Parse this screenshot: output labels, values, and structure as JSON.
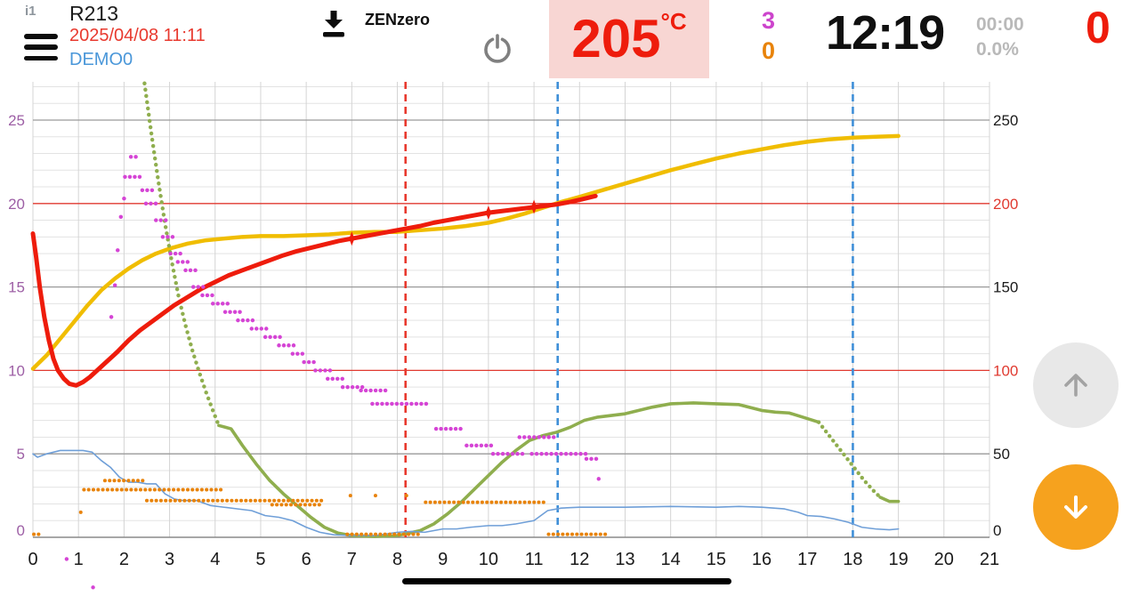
{
  "header": {
    "device_id": "i1",
    "title": "R213",
    "datetime": "2025/04/08 11:11",
    "profile": "DEMO0",
    "brand": "ZENzero",
    "temp_value": "205",
    "temp_unit": "°C",
    "counter_magenta": "3",
    "counter_orange": "0",
    "clock": "12:19",
    "timer_small": "00:00",
    "percent_small": "0.0%",
    "counter_red": "0"
  },
  "colors": {
    "accent_red": "#ee1c0c",
    "accent_blue": "#4a97d9",
    "accent_magenta": "#cc44cc",
    "accent_orange": "#e8830a",
    "temp_bg": "#f8d6d3",
    "fab_orange": "#f6a21e"
  },
  "chart_data": {
    "type": "line",
    "x_axis": {
      "min": 0,
      "max": 21,
      "ticks": [
        0,
        1,
        2,
        3,
        4,
        5,
        6,
        7,
        8,
        9,
        10,
        11,
        12,
        13,
        14,
        15,
        16,
        17,
        18,
        19,
        20,
        21
      ]
    },
    "y_left": {
      "min": 0,
      "max": 25,
      "ticks": [
        0,
        5,
        10,
        15,
        20,
        25
      ],
      "color": "#9d5fa5"
    },
    "y_right": {
      "min": 0,
      "max": 250,
      "ticks": [
        0,
        50,
        100,
        150,
        200,
        250
      ],
      "highlight": [
        100,
        200
      ],
      "highlight_color": "#e03a30"
    },
    "red_line_color": "#e03a30",
    "red_hlines": [
      10,
      20
    ],
    "v_dashed": [
      {
        "x": 8.18,
        "color": "#e8392e"
      },
      {
        "x": 11.52,
        "color": "#3f8fd8"
      },
      {
        "x": 18.0,
        "color": "#3f8fd8"
      }
    ],
    "series": [
      {
        "name": "env-temp",
        "color": "#f0bd00",
        "width": 4.5,
        "style": "solid",
        "points": [
          [
            0,
            10.1
          ],
          [
            0.3,
            10.9
          ],
          [
            0.6,
            11.9
          ],
          [
            0.9,
            12.9
          ],
          [
            1.2,
            13.9
          ],
          [
            1.5,
            14.8
          ],
          [
            1.8,
            15.5
          ],
          [
            2.1,
            16.1
          ],
          [
            2.4,
            16.6
          ],
          [
            2.7,
            17.0
          ],
          [
            3.0,
            17.3
          ],
          [
            3.4,
            17.6
          ],
          [
            3.8,
            17.8
          ],
          [
            4.2,
            17.9
          ],
          [
            4.6,
            18.0
          ],
          [
            5.0,
            18.05
          ],
          [
            5.5,
            18.05
          ],
          [
            6.0,
            18.1
          ],
          [
            6.5,
            18.15
          ],
          [
            7.0,
            18.25
          ],
          [
            7.5,
            18.3
          ],
          [
            8.0,
            18.3
          ],
          [
            8.5,
            18.4
          ],
          [
            9.0,
            18.5
          ],
          [
            9.5,
            18.65
          ],
          [
            10.0,
            18.85
          ],
          [
            10.4,
            19.1
          ],
          [
            10.8,
            19.4
          ],
          [
            11.2,
            19.75
          ],
          [
            11.6,
            20.1
          ],
          [
            12.0,
            20.4
          ],
          [
            12.5,
            20.8
          ],
          [
            13.0,
            21.2
          ],
          [
            13.5,
            21.6
          ],
          [
            14.0,
            22.0
          ],
          [
            14.5,
            22.35
          ],
          [
            15.0,
            22.7
          ],
          [
            15.5,
            23.0
          ],
          [
            16.0,
            23.25
          ],
          [
            16.5,
            23.5
          ],
          [
            17.0,
            23.7
          ],
          [
            17.5,
            23.85
          ],
          [
            18.0,
            23.95
          ],
          [
            18.5,
            24.0
          ],
          [
            19.0,
            24.05
          ]
        ]
      },
      {
        "name": "ror-drop-dotted",
        "color": "#8fae4e",
        "width": 4.4,
        "style": "dotted",
        "gap": 7,
        "points": [
          [
            2.45,
            27.2
          ],
          [
            2.6,
            24.2
          ],
          [
            2.75,
            21.4
          ],
          [
            2.9,
            18.8
          ],
          [
            3.05,
            16.5
          ],
          [
            3.2,
            14.4
          ],
          [
            3.35,
            12.7
          ],
          [
            3.5,
            11.2
          ],
          [
            3.65,
            9.9
          ],
          [
            3.8,
            8.7
          ],
          [
            3.95,
            7.6
          ],
          [
            4.08,
            6.7
          ]
        ]
      },
      {
        "name": "gas-power",
        "color": "#8fae4e",
        "width": 3.6,
        "style": "solid",
        "points": [
          [
            4.08,
            6.7
          ],
          [
            4.35,
            6.5
          ],
          [
            4.6,
            5.5
          ],
          [
            4.9,
            4.4
          ],
          [
            5.2,
            3.4
          ],
          [
            5.5,
            2.6
          ],
          [
            5.8,
            1.9
          ],
          [
            6.1,
            1.2
          ],
          [
            6.4,
            0.6
          ],
          [
            6.7,
            0.25
          ],
          [
            7.0,
            0.1
          ],
          [
            7.5,
            0.05
          ],
          [
            8.0,
            0.1
          ],
          [
            8.5,
            0.4
          ],
          [
            8.8,
            0.8
          ],
          [
            9.1,
            1.4
          ],
          [
            9.4,
            2.1
          ],
          [
            9.7,
            2.9
          ],
          [
            10.0,
            3.7
          ],
          [
            10.3,
            4.5
          ],
          [
            10.6,
            5.2
          ],
          [
            10.9,
            5.8
          ],
          [
            11.2,
            6.1
          ],
          [
            11.5,
            6.3
          ],
          [
            11.8,
            6.6
          ],
          [
            12.1,
            7.0
          ],
          [
            12.4,
            7.2
          ],
          [
            12.7,
            7.3
          ],
          [
            13.0,
            7.4
          ],
          [
            13.3,
            7.6
          ],
          [
            13.6,
            7.8
          ],
          [
            14.0,
            8.0
          ],
          [
            14.5,
            8.05
          ],
          [
            15.0,
            8.0
          ],
          [
            15.5,
            7.95
          ],
          [
            16.0,
            7.6
          ],
          [
            16.3,
            7.5
          ],
          [
            16.6,
            7.45
          ],
          [
            16.9,
            7.2
          ],
          [
            17.25,
            6.9
          ]
        ]
      },
      {
        "name": "gas-tail-dotted",
        "color": "#8fae4e",
        "width": 4.4,
        "style": "dotted",
        "gap": 6.5,
        "points": [
          [
            17.25,
            6.9
          ],
          [
            17.45,
            6.2
          ],
          [
            17.65,
            5.5
          ],
          [
            17.85,
            4.8
          ],
          [
            18.05,
            4.1
          ],
          [
            18.25,
            3.4
          ],
          [
            18.45,
            2.8
          ],
          [
            18.6,
            2.4
          ]
        ]
      },
      {
        "name": "gas-tail",
        "color": "#8fae4e",
        "width": 3.6,
        "style": "solid",
        "points": [
          [
            18.6,
            2.4
          ],
          [
            18.8,
            2.15
          ],
          [
            19.0,
            2.15
          ]
        ]
      },
      {
        "name": "damper",
        "color": "#6f9fd8",
        "width": 1.6,
        "style": "solid",
        "points": [
          [
            0,
            5.0
          ],
          [
            0.1,
            4.8
          ],
          [
            0.3,
            5.0
          ],
          [
            0.6,
            5.2
          ],
          [
            0.9,
            5.2
          ],
          [
            1.1,
            5.2
          ],
          [
            1.3,
            5.1
          ],
          [
            1.5,
            4.6
          ],
          [
            1.7,
            4.2
          ],
          [
            1.9,
            3.6
          ],
          [
            2.1,
            3.3
          ],
          [
            2.3,
            3.3
          ],
          [
            2.5,
            3.2
          ],
          [
            2.7,
            3.2
          ],
          [
            2.9,
            2.6
          ],
          [
            3.1,
            2.3
          ],
          [
            3.3,
            2.2
          ],
          [
            3.6,
            2.2
          ],
          [
            3.9,
            1.9
          ],
          [
            4.2,
            1.8
          ],
          [
            4.5,
            1.7
          ],
          [
            4.8,
            1.6
          ],
          [
            5.1,
            1.3
          ],
          [
            5.4,
            1.2
          ],
          [
            5.7,
            1.0
          ],
          [
            6.0,
            0.6
          ],
          [
            6.3,
            0.3
          ],
          [
            6.6,
            0.15
          ],
          [
            7.0,
            0.1
          ],
          [
            7.5,
            0.1
          ],
          [
            8.0,
            0.3
          ],
          [
            8.3,
            0.35
          ],
          [
            8.6,
            0.3
          ],
          [
            9.0,
            0.5
          ],
          [
            9.3,
            0.5
          ],
          [
            9.6,
            0.6
          ],
          [
            10.0,
            0.7
          ],
          [
            10.3,
            0.7
          ],
          [
            10.6,
            0.8
          ],
          [
            11.0,
            1.0
          ],
          [
            11.3,
            1.6
          ],
          [
            11.6,
            1.75
          ],
          [
            12.0,
            1.8
          ],
          [
            13.0,
            1.8
          ],
          [
            14.0,
            1.85
          ],
          [
            15.0,
            1.8
          ],
          [
            15.5,
            1.85
          ],
          [
            16.0,
            1.8
          ],
          [
            16.5,
            1.7
          ],
          [
            16.8,
            1.5
          ],
          [
            17.0,
            1.3
          ],
          [
            17.3,
            1.25
          ],
          [
            17.6,
            1.1
          ],
          [
            17.9,
            0.9
          ],
          [
            18.2,
            0.6
          ],
          [
            18.5,
            0.5
          ],
          [
            18.8,
            0.45
          ],
          [
            19.0,
            0.5
          ]
        ]
      },
      {
        "name": "bean-temp",
        "color": "#ee1c0c",
        "width": 5,
        "style": "solid",
        "points": [
          [
            0,
            18.2
          ],
          [
            0.07,
            16.8
          ],
          [
            0.15,
            15.0
          ],
          [
            0.25,
            13.2
          ],
          [
            0.35,
            11.8
          ],
          [
            0.45,
            10.7
          ],
          [
            0.55,
            10.0
          ],
          [
            0.68,
            9.5
          ],
          [
            0.8,
            9.2
          ],
          [
            0.95,
            9.1
          ],
          [
            1.1,
            9.3
          ],
          [
            1.25,
            9.6
          ],
          [
            1.45,
            10.1
          ],
          [
            1.65,
            10.6
          ],
          [
            1.85,
            11.1
          ],
          [
            2.1,
            11.8
          ],
          [
            2.35,
            12.4
          ],
          [
            2.6,
            12.9
          ],
          [
            2.85,
            13.4
          ],
          [
            3.1,
            13.9
          ],
          [
            3.4,
            14.4
          ],
          [
            3.7,
            14.9
          ],
          [
            4.0,
            15.3
          ],
          [
            4.3,
            15.7
          ],
          [
            4.6,
            16.0
          ],
          [
            4.9,
            16.3
          ],
          [
            5.2,
            16.6
          ],
          [
            5.5,
            16.9
          ],
          [
            5.8,
            17.15
          ],
          [
            6.1,
            17.35
          ],
          [
            6.4,
            17.55
          ],
          [
            6.7,
            17.75
          ],
          [
            7.0,
            17.9
          ],
          [
            7.3,
            18.05
          ],
          [
            7.6,
            18.2
          ],
          [
            7.9,
            18.35
          ],
          [
            8.2,
            18.5
          ],
          [
            8.5,
            18.65
          ],
          [
            8.8,
            18.85
          ],
          [
            9.1,
            19.0
          ],
          [
            9.4,
            19.15
          ],
          [
            9.7,
            19.3
          ],
          [
            10.0,
            19.45
          ],
          [
            10.3,
            19.55
          ],
          [
            10.6,
            19.65
          ],
          [
            10.9,
            19.75
          ],
          [
            11.2,
            19.85
          ],
          [
            11.5,
            19.95
          ],
          [
            11.8,
            20.1
          ],
          [
            12.05,
            20.25
          ],
          [
            12.35,
            20.45
          ]
        ]
      }
    ],
    "dot_series": [
      {
        "name": "burner-steps",
        "color": "#e8830a",
        "size": 4.0,
        "gap": 5.2,
        "segments": [
          [
            0.02,
            0.14,
            0.18
          ],
          [
            1.58,
            2.45,
            3.4
          ],
          [
            1.12,
            4.2,
            2.85
          ],
          [
            2.5,
            6.35,
            2.2
          ],
          [
            5.25,
            6.35,
            1.95
          ],
          [
            6.9,
            8.55,
            0.18
          ],
          [
            8.62,
            11.28,
            2.1
          ],
          [
            11.32,
            12.6,
            0.18
          ]
        ],
        "dots": [
          [
            1.05,
            1.5
          ],
          [
            6.97,
            2.5
          ],
          [
            7.52,
            2.5
          ],
          [
            8.2,
            2.5
          ]
        ]
      },
      {
        "name": "fan-steps",
        "color": "#d544d5",
        "size": 4.4,
        "gap": 5.4,
        "segments": [
          [
            1.72,
            1.8,
            13.2
          ],
          [
            1.8,
            1.9,
            15.1
          ],
          [
            1.86,
            1.96,
            17.2
          ],
          [
            1.93,
            2.03,
            19.2
          ],
          [
            2.0,
            2.1,
            20.3
          ],
          [
            2.02,
            2.42,
            21.6
          ],
          [
            2.15,
            2.32,
            22.8
          ],
          [
            2.4,
            2.62,
            20.8
          ],
          [
            2.48,
            2.8,
            20.0
          ],
          [
            2.7,
            2.95,
            19.0
          ],
          [
            2.85,
            3.1,
            18.0
          ],
          [
            3.02,
            3.27,
            17.0
          ],
          [
            3.18,
            3.43,
            16.5
          ],
          [
            3.35,
            3.6,
            16.0
          ],
          [
            3.52,
            3.77,
            15.0
          ],
          [
            3.72,
            4.02,
            14.5
          ],
          [
            3.95,
            4.3,
            14.0
          ],
          [
            4.22,
            4.57,
            13.5
          ],
          [
            4.5,
            4.87,
            13.0
          ],
          [
            4.8,
            5.17,
            12.5
          ],
          [
            5.1,
            5.47,
            12.0
          ],
          [
            5.4,
            5.77,
            11.5
          ],
          [
            5.7,
            6.02,
            11.0
          ],
          [
            5.95,
            6.27,
            10.5
          ],
          [
            6.2,
            6.57,
            10.0
          ],
          [
            6.47,
            6.87,
            9.5
          ],
          [
            6.8,
            7.32,
            9.0
          ],
          [
            7.2,
            7.82,
            8.8
          ],
          [
            7.45,
            8.65,
            8.0
          ],
          [
            8.85,
            9.45,
            6.5
          ],
          [
            9.52,
            10.15,
            5.5
          ],
          [
            10.1,
            10.75,
            5.0
          ],
          [
            10.68,
            11.45,
            6.0
          ],
          [
            10.95,
            12.15,
            5.0
          ],
          [
            12.15,
            12.38,
            4.7
          ]
        ],
        "dots": [
          [
            0.74,
            -1.3
          ],
          [
            1.32,
            -3.0
          ],
          [
            12.42,
            3.5
          ]
        ]
      }
    ],
    "markers": {
      "color": "#ee1c0c",
      "points": [
        [
          7.0,
          17.9
        ],
        [
          10.0,
          19.45
        ],
        [
          11.0,
          19.8
        ]
      ]
    }
  }
}
